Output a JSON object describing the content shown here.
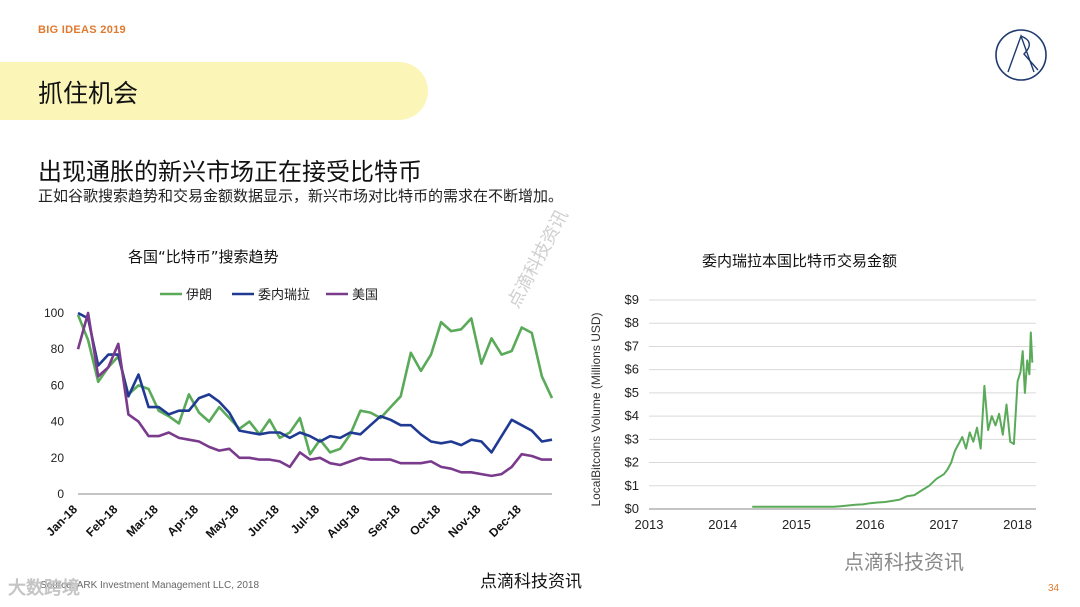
{
  "header": {
    "tag": "BIG IDEAS 2019",
    "section_title": "抓住机会"
  },
  "headline": "出现通胀的新兴市场正在接受比特币",
  "subheadline": "正如谷歌搜索趋势和交易金额数据显示，新兴市场对比特币的需求在不断增加。",
  "chart_data": [
    {
      "type": "line",
      "title": "各国“比特币”搜索趋势",
      "xlabel": "",
      "ylabel": "",
      "ylim": [
        0,
        100
      ],
      "yticks": [
        0,
        20,
        40,
        60,
        80,
        100
      ],
      "x_ticks": [
        "Jan-18",
        "Feb-18",
        "Mar-18",
        "Apr-18",
        "May-18",
        "Jun-18",
        "Jul-18",
        "Aug-18",
        "Sep-18",
        "Oct-18",
        "Nov-18",
        "Dec-18"
      ],
      "x": [
        0,
        0.25,
        0.5,
        0.75,
        1.0,
        1.25,
        1.5,
        1.75,
        2.0,
        2.25,
        2.5,
        2.75,
        3.0,
        3.25,
        3.5,
        3.75,
        4.0,
        4.25,
        4.5,
        4.75,
        5.0,
        5.25,
        5.5,
        5.75,
        6.0,
        6.25,
        6.5,
        6.75,
        7.0,
        7.25,
        7.5,
        7.75,
        8.0,
        8.25,
        8.5,
        8.75,
        9.0,
        9.25,
        9.5,
        9.75,
        10.0,
        10.25,
        10.5,
        10.75,
        11.0,
        11.25,
        11.5,
        11.75
      ],
      "legend_position": "top",
      "series": [
        {
          "name": "伊朗",
          "color": "#5aaa5a",
          "values": [
            99,
            85,
            62,
            70,
            76,
            55,
            60,
            58,
            46,
            43,
            39,
            55,
            45,
            40,
            48,
            42,
            36,
            40,
            33,
            41,
            31,
            34,
            42,
            22,
            30,
            23,
            25,
            33,
            46,
            45,
            42,
            48,
            54,
            78,
            68,
            77,
            95,
            90,
            91,
            97,
            72,
            86,
            77,
            79,
            92,
            89,
            65,
            53
          ]
        },
        {
          "name": "委内瑞拉",
          "color": "#1f3a93",
          "values": [
            100,
            97,
            71,
            77,
            77,
            54,
            66,
            48,
            48,
            44,
            46,
            46,
            53,
            55,
            51,
            45,
            35,
            34,
            33,
            34,
            34,
            31,
            34,
            32,
            29,
            32,
            31,
            34,
            33,
            38,
            43,
            41,
            38,
            38,
            33,
            29,
            28,
            29,
            27,
            30,
            29,
            23,
            32,
            41,
            38,
            35,
            29,
            30
          ]
        },
        {
          "name": "美国",
          "color": "#7a3b8c",
          "values": [
            80,
            100,
            65,
            70,
            83,
            44,
            40,
            32,
            32,
            34,
            31,
            30,
            29,
            26,
            24,
            25,
            20,
            20,
            19,
            19,
            18,
            15,
            23,
            19,
            20,
            17,
            16,
            18,
            20,
            19,
            19,
            19,
            17,
            17,
            17,
            18,
            15,
            14,
            12,
            12,
            11,
            10,
            11,
            15,
            22,
            21,
            19,
            19
          ]
        }
      ]
    },
    {
      "type": "area",
      "title": "委内瑞拉本国比特币交易金额",
      "xlabel": "",
      "ylabel": "LocalBitcoins Volume (Millions USD)",
      "ylim": [
        0,
        9
      ],
      "xlim": [
        2013,
        2018.25
      ],
      "yticks": [
        "$0",
        "$1",
        "$2",
        "$3",
        "$4",
        "$5",
        "$6",
        "$7",
        "$8",
        "$9"
      ],
      "x_ticks": [
        "2013",
        "2014",
        "2015",
        "2016",
        "2017",
        "2018"
      ],
      "grid": true,
      "color": "#5aaa5a",
      "x": [
        2014.4,
        2015.5,
        2015.6,
        2015.7,
        2015.8,
        2015.9,
        2016.0,
        2016.1,
        2016.2,
        2016.3,
        2016.4,
        2016.5,
        2016.6,
        2016.7,
        2016.8,
        2016.9,
        2017.0,
        2017.05,
        2017.1,
        2017.15,
        2017.2,
        2017.25,
        2017.3,
        2017.35,
        2017.4,
        2017.45,
        2017.5,
        2017.55,
        2017.6,
        2017.65,
        2017.7,
        2017.75,
        2017.8,
        2017.85,
        2017.9,
        2017.95,
        2018.0,
        2018.04,
        2018.07,
        2018.1,
        2018.13,
        2018.16,
        2018.18,
        2018.2
      ],
      "values": [
        0.1,
        0.1,
        0.12,
        0.15,
        0.18,
        0.2,
        0.25,
        0.28,
        0.3,
        0.35,
        0.4,
        0.55,
        0.6,
        0.8,
        1.0,
        1.3,
        1.5,
        1.7,
        2.0,
        2.5,
        2.8,
        3.1,
        2.6,
        3.3,
        2.9,
        3.5,
        2.6,
        5.3,
        3.4,
        4.0,
        3.6,
        4.1,
        3.2,
        4.5,
        2.9,
        2.8,
        5.5,
        5.9,
        6.8,
        5.0,
        6.4,
        5.8,
        7.6,
        6.3
      ]
    }
  ],
  "footer": {
    "source": "Source: ARK Investment Management LLC, 2018",
    "page": "34",
    "wm_bottom": "点滴科技资讯",
    "wm_right": "点滴科技资讯",
    "wm_left": "大数跨境",
    "wm_diag": "点滴科技资讯"
  }
}
